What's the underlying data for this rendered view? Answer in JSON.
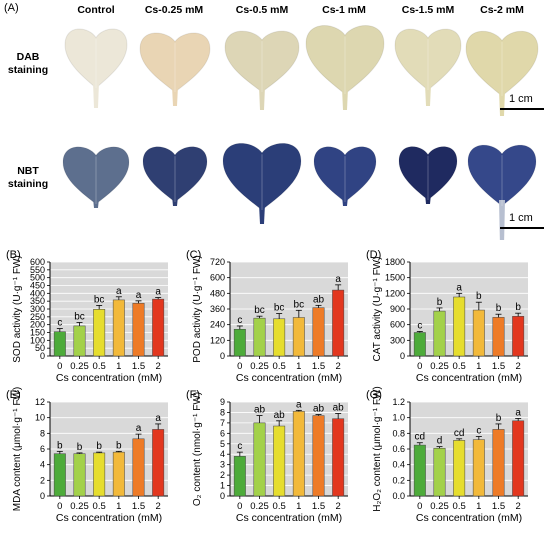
{
  "panel_a": {
    "label": "(A)",
    "treatments": [
      "Control",
      "Cs-0.25 mM",
      "Cs-0.5 mM",
      "Cs-1 mM",
      "Cs-1.5 mM",
      "Cs-2 mM"
    ],
    "row1_label": [
      "DAB",
      "staining"
    ],
    "row2_label": [
      "NBT",
      "staining"
    ],
    "scale_label": "1 cm",
    "dab_leaf_colors": [
      "#ece7d8",
      "#e9d5b4",
      "#ddd6b6",
      "#ddd7b0",
      "#e2dcb8",
      "#e0d8aa"
    ],
    "nbt_leaf_colors": [
      "#5d6f8e",
      "#2f3f72",
      "#2b3e78",
      "#304383",
      "#1f2a60",
      "#35488a"
    ]
  },
  "colors": [
    "#4dab3a",
    "#a3d14a",
    "#e6dd2e",
    "#f2b93a",
    "#ee7b27",
    "#e2371f"
  ],
  "chart_data": [
    {
      "panel": "(B)",
      "type": "bar",
      "ylabel": "SOD activity (U·g⁻¹ FW)",
      "xlabel": "Cs concentration (mM)",
      "categories": [
        "0",
        "0.25",
        "0.5",
        "1",
        "1.5",
        "2"
      ],
      "values": [
        155,
        192,
        298,
        358,
        337,
        363
      ],
      "errors": [
        20,
        22,
        25,
        20,
        15,
        10
      ],
      "letters": [
        "c",
        "bc",
        "bc",
        "a",
        "a",
        "a"
      ],
      "ylim": [
        0,
        600
      ],
      "yticks": [
        0,
        50,
        100,
        150,
        200,
        250,
        300,
        350,
        400,
        450,
        500,
        550,
        600
      ]
    },
    {
      "panel": "(C)",
      "type": "bar",
      "ylabel": "POD activity (U·g⁻¹ FW)",
      "xlabel": "Cs concentration (mM)",
      "categories": [
        "0",
        "0.25",
        "0.5",
        "1",
        "1.5",
        "2"
      ],
      "values": [
        205,
        290,
        285,
        295,
        370,
        505
      ],
      "errors": [
        25,
        15,
        40,
        55,
        18,
        40
      ],
      "letters": [
        "c",
        "bc",
        "bc",
        "bc",
        "ab",
        "a"
      ],
      "ylim": [
        0,
        720
      ],
      "yticks": [
        0,
        120,
        240,
        360,
        480,
        600,
        720
      ]
    },
    {
      "panel": "(D)",
      "type": "bar",
      "ylabel": "CAT activity (U·g⁻¹ FW)",
      "xlabel": "Cs concentration (mM)",
      "categories": [
        "0",
        "0.25",
        "0.5",
        "1",
        "1.5",
        "2"
      ],
      "values": [
        450,
        860,
        1130,
        880,
        740,
        760
      ],
      "errors": [
        20,
        60,
        70,
        150,
        60,
        60
      ],
      "letters": [
        "c",
        "b",
        "a",
        "b",
        "b",
        "b"
      ],
      "ylim": [
        0,
        1800
      ],
      "yticks": [
        0,
        300,
        600,
        900,
        1200,
        1500,
        1800
      ]
    },
    {
      "panel": "(E)",
      "type": "bar",
      "ylabel": "MDA content (μmol·g⁻¹ FW)",
      "xlabel": "Cs concentration (mM)",
      "categories": [
        "0",
        "0.25",
        "0.5",
        "1",
        "1.5",
        "2"
      ],
      "values": [
        5.4,
        5.4,
        5.5,
        5.6,
        7.3,
        8.5
      ],
      "errors": [
        0.3,
        0.1,
        0.1,
        0.1,
        0.6,
        0.7
      ],
      "letters": [
        "b",
        "b",
        "b",
        "b",
        "a",
        "a"
      ],
      "ylim": [
        0,
        12
      ],
      "yticks": [
        0,
        2,
        4,
        6,
        8,
        10,
        12
      ]
    },
    {
      "panel": "(F)",
      "type": "bar",
      "ylabel": "O₂ content (nmol·g⁻¹ FW)",
      "xlabel": "Cs concentration (mM)",
      "categories": [
        "0",
        "0.25",
        "0.5",
        "1",
        "1.5",
        "2"
      ],
      "values": [
        3.8,
        7.0,
        6.7,
        8.1,
        7.7,
        7.4
      ],
      "errors": [
        0.4,
        0.7,
        0.5,
        0.1,
        0.1,
        0.5
      ],
      "letters": [
        "c",
        "ab",
        "ab",
        "a",
        "ab",
        "ab"
      ],
      "ylim": [
        0,
        9
      ],
      "yticks": [
        0,
        1,
        2,
        3,
        4,
        5,
        6,
        7,
        8,
        9
      ]
    },
    {
      "panel": "(G)",
      "type": "bar",
      "ylabel": "H₂O₂ content (μmol·g⁻¹ FW)",
      "xlabel": "Cs concentration (mM)",
      "categories": [
        "0",
        "0.25",
        "0.5",
        "1",
        "1.5",
        "2"
      ],
      "values": [
        0.65,
        0.61,
        0.71,
        0.72,
        0.85,
        0.96
      ],
      "errors": [
        0.03,
        0.02,
        0.02,
        0.04,
        0.07,
        0.03
      ],
      "letters": [
        "cd",
        "d",
        "cd",
        "c",
        "b",
        "a"
      ],
      "ylim": [
        0,
        1.2
      ],
      "yticks": [
        0,
        0.2,
        0.4,
        0.6,
        0.8,
        1.0,
        1.2
      ],
      "ydecimals": 1
    }
  ]
}
